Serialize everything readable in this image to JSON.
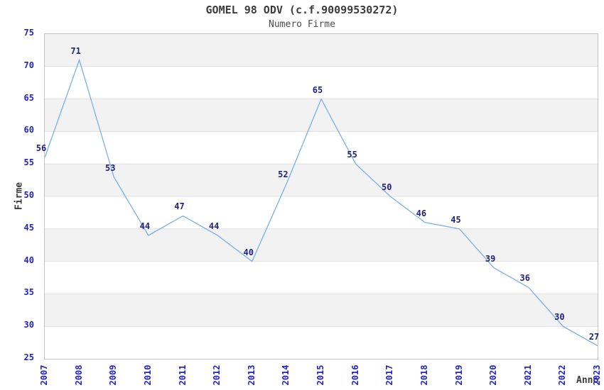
{
  "page": {
    "title": "GOMEL 98 ODV (c.f.90099530272)",
    "subtitle": "Numero Firme"
  },
  "chart_data": {
    "type": "line",
    "title": "GOMEL 98 ODV (c.f.90099530272)",
    "subtitle": "Numero Firme",
    "xlabel": "Anno",
    "ylabel": "Firme",
    "categories": [
      "2007",
      "2008",
      "2009",
      "2010",
      "2011",
      "2012",
      "2013",
      "2014",
      "2015",
      "2016",
      "2017",
      "2018",
      "2019",
      "2020",
      "2021",
      "2022",
      "2023"
    ],
    "series": [
      {
        "name": "Numero Firme",
        "values": [
          56,
          71,
          53,
          44,
          47,
          44,
          40,
          52,
          65,
          55,
          50,
          46,
          45,
          39,
          36,
          30,
          27
        ]
      }
    ],
    "ylim": [
      25,
      75
    ],
    "ytick_step": 5,
    "grid": true,
    "legend": "none",
    "point_labels_visible": true,
    "band_fill": true,
    "colors": {
      "line": "#79afe5",
      "tick_label": "#2222cc",
      "point_label": "#22227d",
      "band": "#f2f2f2",
      "gridline": "#e0e0e0",
      "plot_border": "#c4c4c4",
      "title_text": "#3c3c3c",
      "background": "#ffffff"
    }
  }
}
